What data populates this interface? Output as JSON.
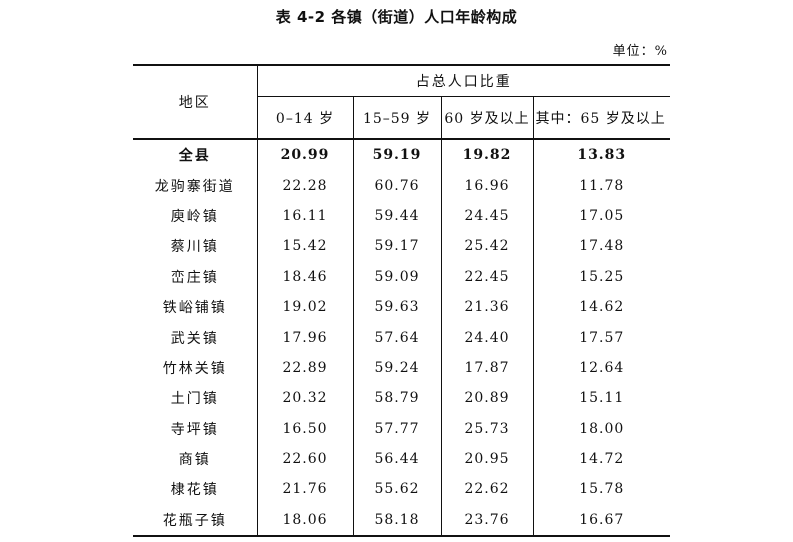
{
  "title": "表 4-2 各镇（街道）人口年龄构成",
  "unit": "单位：%",
  "headers": {
    "region": "地区",
    "group": "占总人口比重",
    "cols": [
      "0–14 岁",
      "15–59 岁",
      "60 岁及以上",
      "其中：65 岁及以上"
    ]
  },
  "rows": [
    {
      "region": "全县",
      "values": [
        "20.99",
        "59.19",
        "19.82",
        "13.83"
      ]
    },
    {
      "region": "龙驹寨街道",
      "values": [
        "22.28",
        "60.76",
        "16.96",
        "11.78"
      ]
    },
    {
      "region": "庾岭镇",
      "values": [
        "16.11",
        "59.44",
        "24.45",
        "17.05"
      ]
    },
    {
      "region": "蔡川镇",
      "values": [
        "15.42",
        "59.17",
        "25.42",
        "17.48"
      ]
    },
    {
      "region": "峦庄镇",
      "values": [
        "18.46",
        "59.09",
        "22.45",
        "15.25"
      ]
    },
    {
      "region": "铁峪铺镇",
      "values": [
        "19.02",
        "59.63",
        "21.36",
        "14.62"
      ]
    },
    {
      "region": "武关镇",
      "values": [
        "17.96",
        "57.64",
        "24.40",
        "17.57"
      ]
    },
    {
      "region": "竹林关镇",
      "values": [
        "22.89",
        "59.24",
        "17.87",
        "12.64"
      ]
    },
    {
      "region": "土门镇",
      "values": [
        "20.32",
        "58.79",
        "20.89",
        "15.11"
      ]
    },
    {
      "region": "寺坪镇",
      "values": [
        "16.50",
        "57.77",
        "25.73",
        "18.00"
      ]
    },
    {
      "region": "商镇",
      "values": [
        "22.60",
        "56.44",
        "20.95",
        "14.72"
      ]
    },
    {
      "region": "棣花镇",
      "values": [
        "21.76",
        "55.62",
        "22.62",
        "15.78"
      ]
    },
    {
      "region": "花瓶子镇",
      "values": [
        "18.06",
        "58.18",
        "23.76",
        "16.67"
      ]
    }
  ]
}
